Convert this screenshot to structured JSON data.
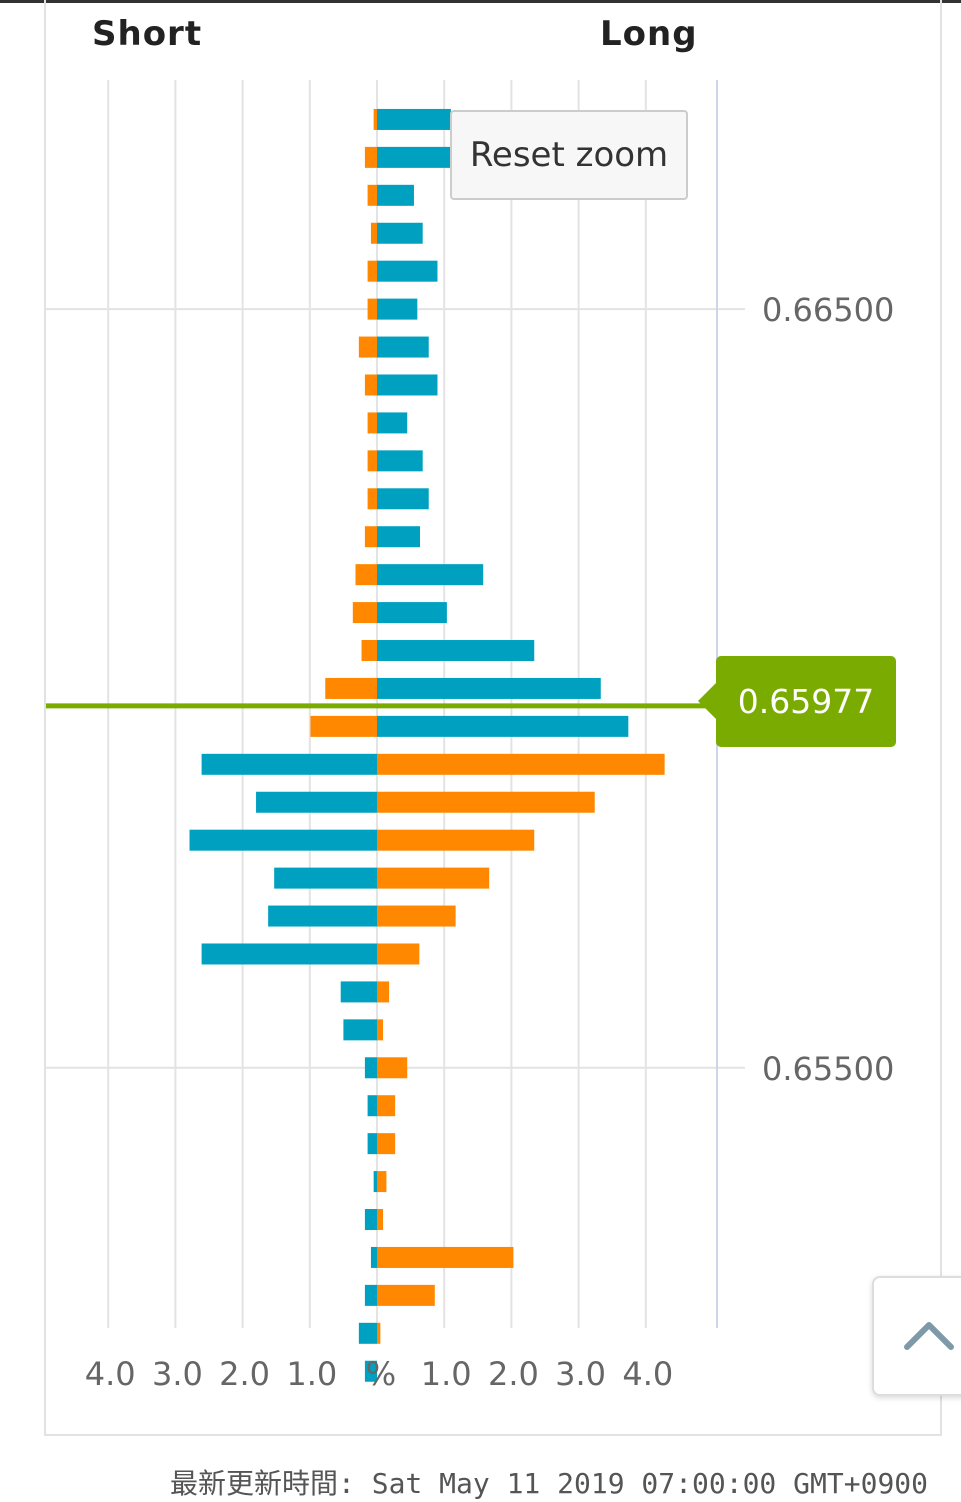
{
  "chart_data": {
    "type": "bar",
    "orientation": "horizontal-diverging",
    "left_label": "Short",
    "right_label": "Long",
    "current_price": "0.65977",
    "price_axis_labels": [
      "0.66500",
      "0.65500"
    ],
    "x_tick_labels": [
      "4.0",
      "3.0",
      "2.0",
      "1.0",
      "%",
      "1.0",
      "2.0",
      "3.0",
      "4.0"
    ],
    "xlim": [
      -4.5,
      4.5
    ],
    "ylim": [
      0.65157,
      0.66802
    ],
    "rows": [
      {
        "price": 0.6675,
        "short_orange": 0.05,
        "long_teal": 1.1
      },
      {
        "price": 0.667,
        "short_orange": 0.18,
        "long_teal": 1.1
      },
      {
        "price": 0.6665,
        "short_orange": 0.14,
        "long_teal": 0.55
      },
      {
        "price": 0.666,
        "short_orange": 0.09,
        "long_teal": 0.68
      },
      {
        "price": 0.6655,
        "short_orange": 0.14,
        "long_teal": 0.9
      },
      {
        "price": 0.665,
        "short_orange": 0.14,
        "long_teal": 0.6
      },
      {
        "price": 0.6645,
        "short_orange": 0.27,
        "long_teal": 0.77
      },
      {
        "price": 0.664,
        "short_orange": 0.18,
        "long_teal": 0.9
      },
      {
        "price": 0.6635,
        "short_orange": 0.14,
        "long_teal": 0.45
      },
      {
        "price": 0.663,
        "short_orange": 0.14,
        "long_teal": 0.68
      },
      {
        "price": 0.6625,
        "short_orange": 0.14,
        "long_teal": 0.77
      },
      {
        "price": 0.662,
        "short_orange": 0.18,
        "long_teal": 0.64
      },
      {
        "price": 0.6615,
        "short_orange": 0.32,
        "long_teal": 1.58
      },
      {
        "price": 0.661,
        "short_orange": 0.36,
        "long_teal": 1.04
      },
      {
        "price": 0.6605,
        "short_orange": 0.23,
        "long_teal": 2.34
      },
      {
        "price": 0.66,
        "short_orange": 0.77,
        "long_teal": 3.33
      },
      {
        "price": 0.6595,
        "short_orange": 0.99,
        "long_teal": 3.74
      },
      {
        "price": 0.659,
        "short_teal": 2.61,
        "long_orange": 4.28
      },
      {
        "price": 0.6585,
        "short_teal": 1.8,
        "long_orange": 3.24
      },
      {
        "price": 0.658,
        "short_teal": 2.79,
        "long_orange": 2.34
      },
      {
        "price": 0.6575,
        "short_teal": 1.53,
        "long_orange": 1.67
      },
      {
        "price": 0.657,
        "short_teal": 1.62,
        "long_orange": 1.17
      },
      {
        "price": 0.6565,
        "short_teal": 2.61,
        "long_orange": 0.63
      },
      {
        "price": 0.656,
        "short_teal": 0.54,
        "long_orange": 0.18
      },
      {
        "price": 0.6555,
        "short_teal": 0.5,
        "long_orange": 0.09
      },
      {
        "price": 0.655,
        "short_teal": 0.18,
        "long_orange": 0.45
      },
      {
        "price": 0.6545,
        "short_teal": 0.14,
        "long_orange": 0.27
      },
      {
        "price": 0.654,
        "short_teal": 0.14,
        "long_orange": 0.27
      },
      {
        "price": 0.6535,
        "short_teal": 0.05,
        "long_orange": 0.14
      },
      {
        "price": 0.653,
        "short_teal": 0.18,
        "long_orange": 0.09
      },
      {
        "price": 0.6525,
        "short_teal": 0.09,
        "long_orange": 2.03
      },
      {
        "price": 0.652,
        "short_teal": 0.18,
        "long_orange": 0.86
      },
      {
        "price": 0.6515,
        "short_teal": 0.27,
        "long_orange": 0.05
      },
      {
        "price": 0.651,
        "short_teal": 0.18,
        "long_orange": 0.0
      }
    ],
    "colors": {
      "teal": "#00a1c0",
      "orange": "#ff8800",
      "price_line": "#7aab00",
      "grid": "#e3e3e3",
      "axis": "#ccd6eb"
    },
    "grid": true
  },
  "ui": {
    "reset_zoom_label": "Reset zoom",
    "scroll_top_icon": "chevron-up-icon",
    "updated_text": "最新更新時間: Sat May 11 2019 07:00:00 GMT+0900"
  }
}
